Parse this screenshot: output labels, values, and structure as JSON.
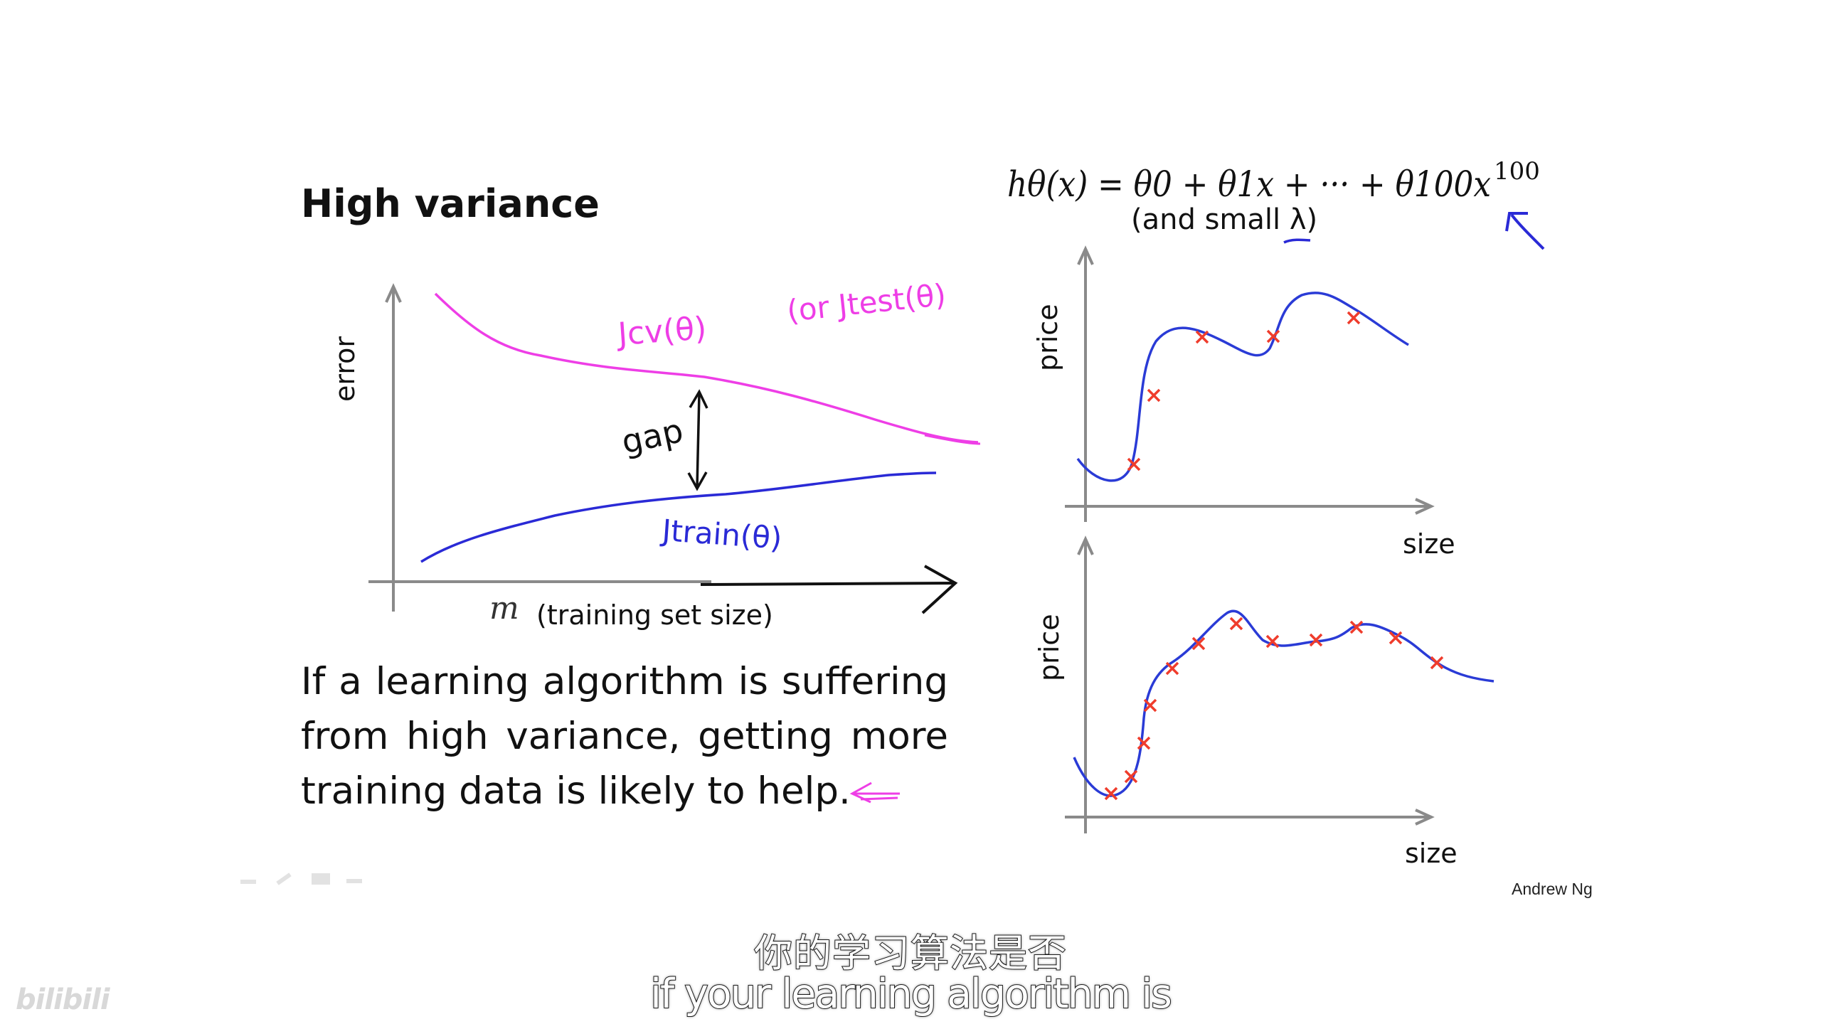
{
  "slide": {
    "title": "High variance",
    "conclusion_lines": [
      "If a learning algorithm is suffering",
      "from high variance, getting more",
      "training data is likely to help."
    ],
    "author": "Andrew Ng"
  },
  "learning_curve": {
    "ylabel": "error",
    "xlabel_var": "m",
    "xlabel": "(training set size)",
    "cv_label": "Jcv(θ)",
    "or_test_label": "(or Jtest(θ)",
    "train_label": "Jtrain(θ)",
    "gap_label": "gap"
  },
  "hypothesis": {
    "formula_lhs": "hθ(x) = θ0 + θ1x + ··· + θ100x",
    "formula_exp": "100",
    "note": "(and small λ)"
  },
  "fit_plots": [
    {
      "ylabel": "price",
      "xlabel": "size"
    },
    {
      "ylabel": "price",
      "xlabel": "size"
    }
  ],
  "subtitles": {
    "chinese": "你的学习算法是否",
    "english": "if your learning algorithm is"
  },
  "watermark": "bilibili",
  "colors": {
    "cv_curve": "#ee3ee6",
    "train_curve": "#2a2ad6",
    "data_marker": "#ef3c2c",
    "fit_curve": "#2a3bd6"
  }
}
